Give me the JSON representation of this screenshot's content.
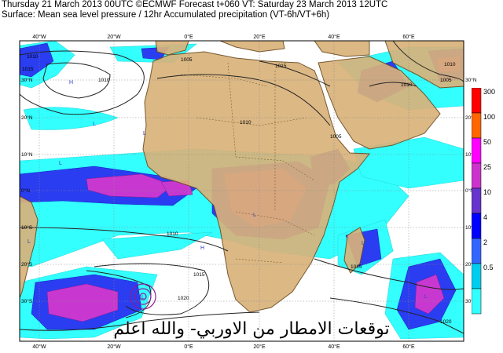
{
  "header": {
    "line1": "Thursday 21 March 2013 00UTC ©ECMWF Forecast t+060 VT: Saturday 23 March 2013 12UTC",
    "line2": "Surface: Mean sea level pressure / 12hr Accumulated precipitation (VT-6h/VT+6h)"
  },
  "map": {
    "top_lon_labels": [
      "40°W",
      "20°W",
      "0°E",
      "20°E",
      "40°E",
      "60°E"
    ],
    "bottom_lon_labels": [
      "40°W",
      "20°W",
      "0°E",
      "20°E",
      "40°E",
      "60°E"
    ],
    "left_lat_labels": [
      "30°N",
      "20°N",
      "10°N",
      "0°N",
      "10°S",
      "20°S",
      "30°S"
    ],
    "right_lat_labels": [
      "30°N",
      "20°N",
      "10°N",
      "0°N",
      "10°S",
      "20°S",
      "30°S"
    ],
    "isobar_labels": [
      {
        "text": "1010",
        "pos": "northwest"
      },
      {
        "text": "1015",
        "pos": "northwest"
      },
      {
        "text": "1010",
        "pos": "north-atlantic"
      },
      {
        "text": "1005",
        "pos": "north-africa"
      },
      {
        "text": "1015",
        "pos": "north-egypt"
      },
      {
        "text": "1010",
        "pos": "mid-africa"
      },
      {
        "text": "1005",
        "pos": "arabia"
      },
      {
        "text": "1010",
        "pos": "arabia-east"
      },
      {
        "text": "1005",
        "pos": "northeast"
      },
      {
        "text": "1010",
        "pos": "northeast-corner"
      },
      {
        "text": "1010",
        "pos": "south-atlantic"
      },
      {
        "text": "1015",
        "pos": "south-africa-west"
      },
      {
        "text": "1020",
        "pos": "southwest"
      },
      {
        "text": "1015",
        "pos": "southeast"
      },
      {
        "text": "1020",
        "pos": "southeast-corner"
      }
    ],
    "pressure_marks": [
      "H",
      "L",
      "L",
      "L",
      "L",
      "H",
      "L",
      "L",
      "L",
      "L"
    ],
    "overlay_text": "توقعات الامطار من الاوربي- والله اعلم"
  },
  "legend": {
    "labels": [
      "300",
      "100",
      "50",
      "25",
      "10",
      "4",
      "2",
      "0.5"
    ],
    "colors": [
      "#ff0000",
      "#ff6600",
      "#ff00ff",
      "#cc33cc",
      "#6633cc",
      "#0000ff",
      "#3366ff",
      "#00ccee",
      "#33ffff"
    ]
  },
  "colors": {
    "land": "#d9b27a",
    "land_border": "#6b4a1e",
    "sea": "#ffffff",
    "precip_light": "#33ffff",
    "precip_mid": "#0000ff",
    "precip_heavy": "#cc33cc",
    "isobar": "#222222"
  }
}
